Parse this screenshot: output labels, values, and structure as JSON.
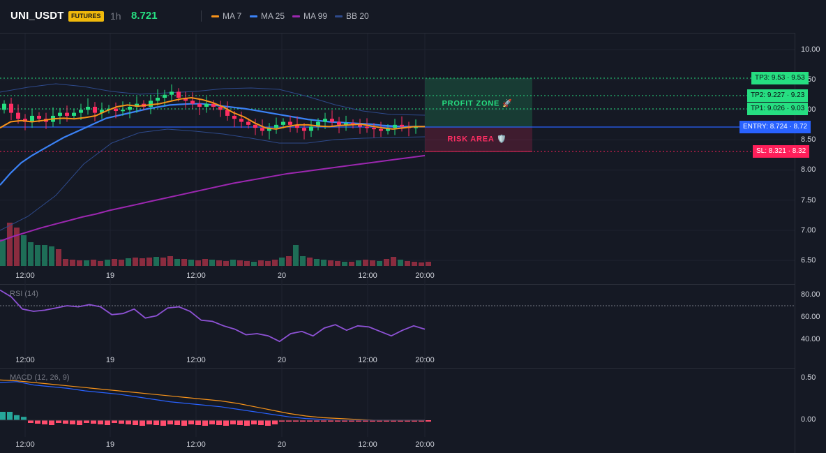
{
  "header": {
    "symbol": "UNI_USDT",
    "badge": "FUTURES",
    "timeframe": "1h",
    "last_price": "8.721",
    "legend": [
      {
        "label": "MA 7",
        "color": "#f7931a"
      },
      {
        "label": "MA 25",
        "color": "#3b82f6"
      },
      {
        "label": "MA 99",
        "color": "#9c27b0"
      },
      {
        "label": "BB 20",
        "color": "#2e4a8c"
      }
    ]
  },
  "price_axis": {
    "ticks": [
      "10.00",
      "9.50",
      "9.00",
      "8.50",
      "8.00",
      "7.50",
      "7.00",
      "6.50"
    ]
  },
  "rsi_axis": {
    "ticks": [
      "80.00",
      "60.00",
      "40.00"
    ]
  },
  "macd_axis": {
    "ticks": [
      "0.50",
      "0.00"
    ]
  },
  "time_axis": {
    "ticks": [
      "12:00",
      "19",
      "12:00",
      "20",
      "12:00",
      "20:00"
    ]
  },
  "levels": {
    "tp3": "TP3: 9.53 · 9.53",
    "tp2": "TP2: 9.227 · 9.23",
    "tp1": "TP1: 9.026 · 9.03",
    "entry": "ENTRY: 8.724 · 8.72",
    "sl": "SL: 8.321 · 8.32"
  },
  "zones": {
    "profit_label": "PROFIT ZONE 🚀",
    "risk_label": "RISK AREA 🛡️"
  },
  "panes": {
    "rsi_title": "RSI (14)",
    "macd_title": "MACD (12, 26, 9)"
  },
  "colors": {
    "bull": "#26de81",
    "bear": "#ff2e63",
    "tp": "#26de81",
    "entry": "#2962ff",
    "sl": "#ff1f5a",
    "rsi": "#8e52d6",
    "macd": "#2962ff",
    "signal": "#f7931a"
  },
  "chart_data": {
    "type": "candlestick",
    "price_ylim": [
      6.4,
      10.2
    ],
    "ma7": [
      8.7,
      8.8,
      8.82,
      8.8,
      8.82,
      8.85,
      8.86,
      8.85,
      8.87,
      8.9,
      8.98,
      9.05,
      9.08,
      9.06,
      9.08,
      9.1,
      9.14,
      9.18,
      9.2,
      9.17,
      9.12,
      9.05,
      8.95,
      8.88,
      8.78,
      8.7,
      8.68,
      8.72,
      8.75,
      8.75,
      8.73,
      8.72,
      8.74,
      8.75,
      8.76,
      8.73,
      8.7,
      8.68,
      8.7,
      8.72,
      8.72
    ],
    "ma25": [
      7.75,
      7.95,
      8.12,
      8.24,
      8.34,
      8.44,
      8.54,
      8.62,
      8.7,
      8.78,
      8.86,
      8.9,
      8.94,
      8.98,
      9.02,
      9.05,
      9.08,
      9.09,
      9.1,
      9.1,
      9.08,
      9.06,
      9.04,
      9.02,
      8.99,
      8.96,
      8.93,
      8.9,
      8.87,
      8.84,
      8.82,
      8.8,
      8.79,
      8.78,
      8.77,
      8.76,
      8.74,
      8.73,
      8.72,
      8.72,
      8.72
    ],
    "ma99": [
      6.82,
      6.9,
      6.97,
      7.04,
      7.1,
      7.16,
      7.22,
      7.27,
      7.33,
      7.38,
      7.43,
      7.48,
      7.53,
      7.58,
      7.63,
      7.68,
      7.73,
      7.78,
      7.82,
      7.86,
      7.9,
      7.94,
      7.97,
      8.0,
      8.03,
      8.06,
      8.09,
      8.12,
      8.15,
      8.18,
      8.21,
      8.24
    ],
    "rsi": [
      84,
      78,
      67,
      65,
      66,
      68,
      70,
      69,
      71,
      69,
      62,
      63,
      67,
      59,
      61,
      68,
      69,
      65,
      57,
      56,
      52,
      49,
      44,
      45,
      43,
      38,
      45,
      47,
      43,
      50,
      53,
      48,
      52,
      51,
      47,
      43,
      48,
      52,
      49
    ],
    "macd": [
      0.45,
      0.46,
      0.42,
      0.4,
      0.38,
      0.35,
      0.33,
      0.31,
      0.28,
      0.25,
      0.22,
      0.2,
      0.18,
      0.16,
      0.13,
      0.1,
      0.07,
      0.04,
      0.02,
      0.01,
      0.0,
      0.0,
      0.0,
      0.0,
      0.0,
      0.0
    ],
    "signal": [
      0.48,
      0.47,
      0.45,
      0.43,
      0.41,
      0.39,
      0.37,
      0.35,
      0.33,
      0.31,
      0.29,
      0.27,
      0.25,
      0.23,
      0.2,
      0.16,
      0.12,
      0.08,
      0.05,
      0.03,
      0.02,
      0.01,
      0.0,
      0.0,
      0.0,
      0.0
    ]
  }
}
